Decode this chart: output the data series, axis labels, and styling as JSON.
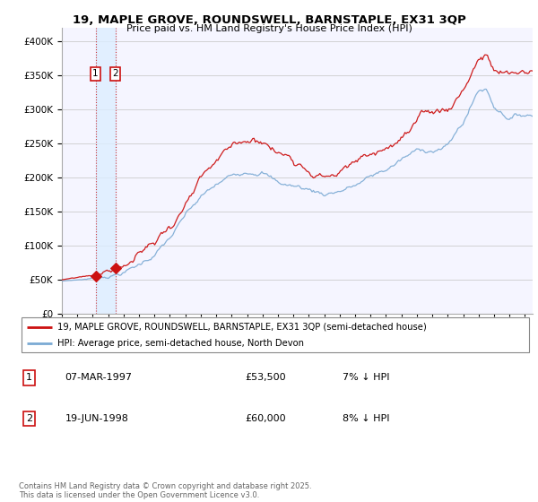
{
  "title1": "19, MAPLE GROVE, ROUNDSWELL, BARNSTAPLE, EX31 3QP",
  "title2": "Price paid vs. HM Land Registry's House Price Index (HPI)",
  "legend1": "19, MAPLE GROVE, ROUNDSWELL, BARNSTAPLE, EX31 3QP (semi-detached house)",
  "legend2": "HPI: Average price, semi-detached house, North Devon",
  "transaction1_date": "07-MAR-1997",
  "transaction1_price": "£53,500",
  "transaction1_hpi": "7% ↓ HPI",
  "transaction1_year": 1997.18,
  "transaction1_value": 53500,
  "transaction2_date": "19-JUN-1998",
  "transaction2_price": "£60,000",
  "transaction2_hpi": "8% ↓ HPI",
  "transaction2_year": 1998.46,
  "transaction2_value": 60000,
  "hpi_color": "#7baad4",
  "price_color": "#cc1111",
  "marker_color": "#cc1111",
  "dashed_color": "#cc1111",
  "shade_color": "#ddeeff",
  "grid_color": "#cccccc",
  "plot_bg": "#f5f5ff",
  "copyright": "Contains HM Land Registry data © Crown copyright and database right 2025.\nThis data is licensed under the Open Government Licence v3.0.",
  "ylim_max": 400000,
  "ylim_min": 0,
  "xmin": 1995,
  "xmax": 2025.5
}
